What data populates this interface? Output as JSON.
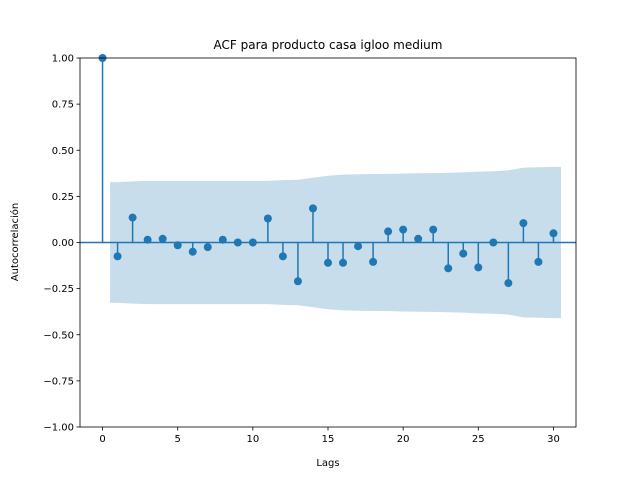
{
  "chart_data": {
    "type": "stem",
    "title": "ACF para producto casa igloo medium",
    "xlabel": "Lags",
    "ylabel": "Autocorrelación",
    "xlim": [
      -1.5,
      31.5
    ],
    "ylim": [
      -1.0,
      1.0
    ],
    "xticks": [
      0,
      5,
      10,
      15,
      20,
      25,
      30
    ],
    "yticks": [
      -1.0,
      -0.75,
      -0.5,
      -0.25,
      0.0,
      0.25,
      0.5,
      0.75,
      1.0
    ],
    "xtick_labels": [
      "0",
      "5",
      "10",
      "15",
      "20",
      "25",
      "30"
    ],
    "ytick_labels": [
      "−1.00",
      "−0.75",
      "−0.50",
      "−0.25",
      "0.00",
      "0.25",
      "0.50",
      "0.75",
      "1.00"
    ],
    "grid": false,
    "series_color": "#1f77b4",
    "band_color": "#1f77b4",
    "lags": [
      0,
      1,
      2,
      3,
      4,
      5,
      6,
      7,
      8,
      9,
      10,
      11,
      12,
      13,
      14,
      15,
      16,
      17,
      18,
      19,
      20,
      21,
      22,
      23,
      24,
      25,
      26,
      27,
      28,
      29,
      30
    ],
    "acf": [
      1.0,
      -0.075,
      0.135,
      0.015,
      0.02,
      -0.015,
      -0.05,
      -0.025,
      0.015,
      0.0,
      0.0,
      0.13,
      -0.075,
      -0.21,
      0.185,
      -0.11,
      -0.11,
      -0.02,
      -0.105,
      0.06,
      0.07,
      0.02,
      0.07,
      -0.14,
      -0.06,
      -0.135,
      0.0,
      -0.22,
      0.105,
      -0.105,
      0.05
    ],
    "confidence_band": {
      "lags": [
        0.5,
        1,
        2,
        3,
        4,
        5,
        6,
        7,
        8,
        9,
        10,
        11,
        12,
        13,
        14,
        15,
        16,
        17,
        18,
        19,
        20,
        21,
        22,
        23,
        24,
        25,
        26,
        27,
        28,
        29,
        30,
        30.5
      ],
      "upper": [
        0.327,
        0.327,
        0.331,
        0.334,
        0.334,
        0.334,
        0.334,
        0.334,
        0.334,
        0.334,
        0.334,
        0.334,
        0.338,
        0.34,
        0.351,
        0.362,
        0.368,
        0.37,
        0.371,
        0.372,
        0.374,
        0.375,
        0.376,
        0.378,
        0.38,
        0.384,
        0.386,
        0.391,
        0.406,
        0.408,
        0.41,
        0.41
      ]
    }
  }
}
